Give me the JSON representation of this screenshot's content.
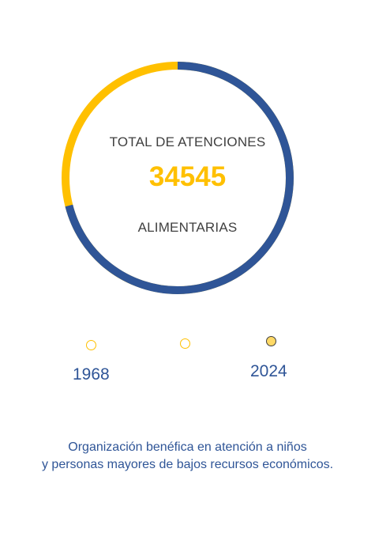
{
  "donut": {
    "title_top": "TOTAL DE ATENCIONES",
    "value": "34545",
    "title_bottom": "ALIMENTARIAS",
    "completed_fraction": 0.71,
    "colors": {
      "primary": "#2F5597",
      "secondary": "#FFC000"
    }
  },
  "timeline": {
    "start_year": "1968",
    "end_year": "2024",
    "active_index": 2,
    "dot_count": 3
  },
  "description": {
    "line1": "Organización benéfica en atención a niños",
    "line2": "y personas mayores de bajos recursos económicos."
  }
}
